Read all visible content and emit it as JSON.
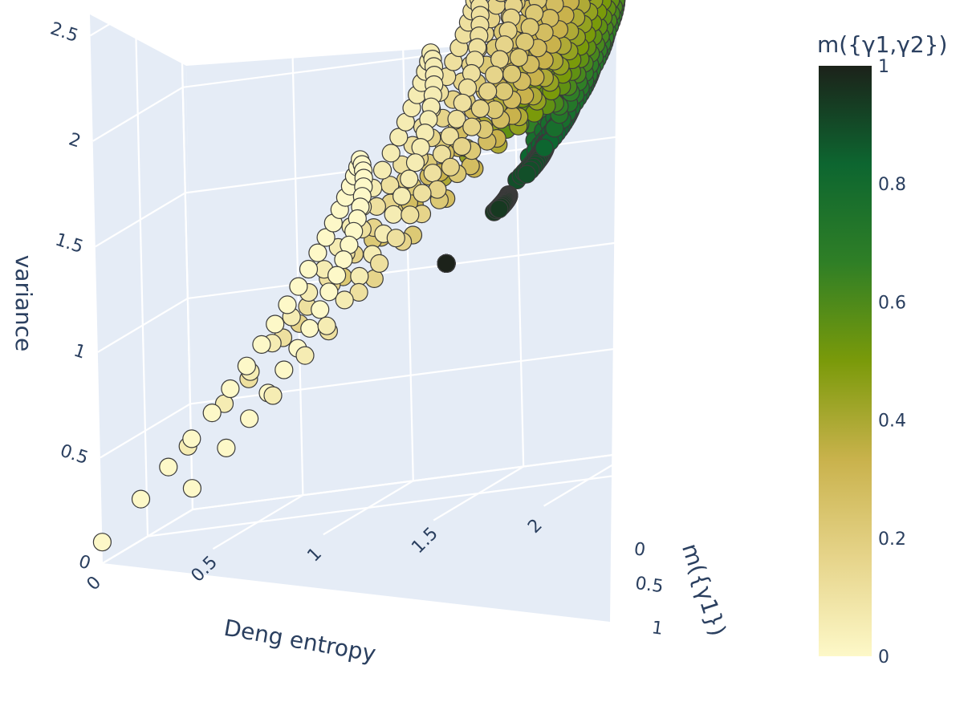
{
  "chart_data": {
    "type": "scatter3d",
    "x_axis": {
      "title": "Deng entropy",
      "range": [
        0,
        2.3
      ],
      "ticks": [
        "0",
        "0.5",
        "1",
        "1.5",
        "2"
      ]
    },
    "y_axis": {
      "title": "m({γ1})",
      "range": [
        0,
        1
      ],
      "ticks": [
        "0",
        "0.5",
        "1"
      ]
    },
    "z_axis": {
      "title": "variance",
      "range": [
        0,
        2.6
      ],
      "ticks": [
        "0",
        "0.5",
        "1",
        "1.5",
        "2",
        "2.5"
      ]
    },
    "colorbar": {
      "title": "m({γ1,γ2})",
      "range": [
        0,
        1
      ],
      "ticks": [
        "0",
        "0.2",
        "0.4",
        "0.6",
        "0.8",
        "1"
      ],
      "colorscale": [
        "#fdf8c8",
        "#e6d48a",
        "#c9b24c",
        "#7a9a0a",
        "#2f7f26",
        "#0d6630",
        "#1c221a"
      ]
    },
    "marker": {
      "outline": "#3a3a3a"
    },
    "grid": true,
    "scene_background": "#e5ecf6"
  }
}
